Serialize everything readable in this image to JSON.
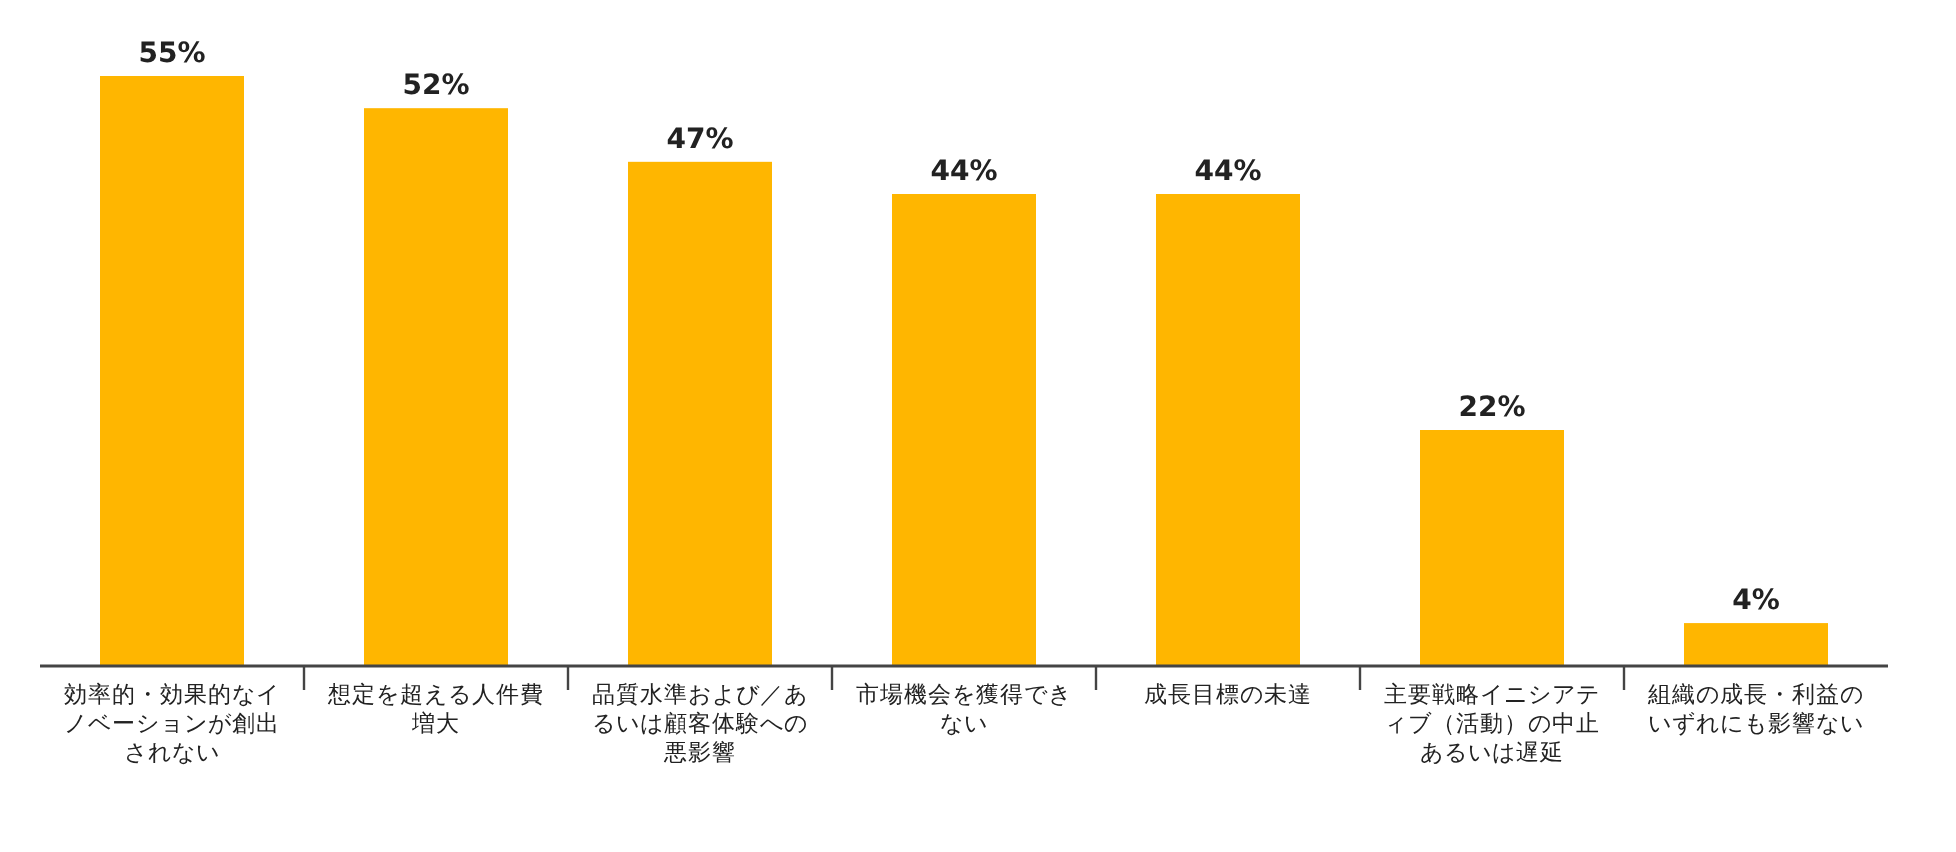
{
  "chart_data": {
    "type": "bar",
    "categories": [
      "効率的・効果的なイノベーションが創出されない",
      "想定を超える人件費増大",
      "品質水準および／あるいは顧客体験への悪影響",
      "市場機会を獲得できない",
      "成長目標の未達",
      "主要戦略イニシアティブ（活動）の中止あるいは遅延",
      "組織の成長・利益のいずれにも影響ない"
    ],
    "values": [
      55,
      52,
      47,
      44,
      44,
      22,
      4
    ],
    "value_labels": [
      "55%",
      "52%",
      "47%",
      "44%",
      "44%",
      "22%",
      "4%"
    ],
    "color": "#ffb600"
  }
}
